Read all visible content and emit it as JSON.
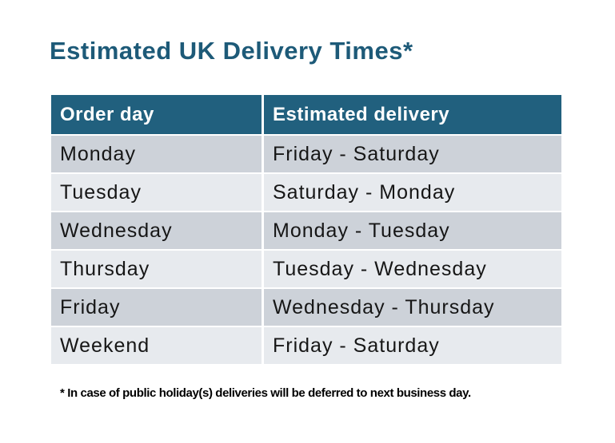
{
  "title": "Estimated UK Delivery Times*",
  "table": {
    "columns": [
      "Order day",
      "Estimated delivery"
    ],
    "rows": [
      {
        "order_day": "Monday",
        "estimated_delivery": "Friday - Saturday"
      },
      {
        "order_day": "Tuesday",
        "estimated_delivery": "Saturday - Monday"
      },
      {
        "order_day": "Wednesday",
        "estimated_delivery": "Monday - Tuesday"
      },
      {
        "order_day": "Thursday",
        "estimated_delivery": "Tuesday - Wednesday"
      },
      {
        "order_day": "Friday",
        "estimated_delivery": "Wednesday - Thursday"
      },
      {
        "order_day": "Weekend",
        "estimated_delivery": "Friday - Saturday"
      }
    ]
  },
  "footnote": "* In case of public holiday(s) deliveries will be deferred to next business day.",
  "colors": {
    "background": "#FFFFFF",
    "title": "#1D5A78",
    "header_bg": "#21607E",
    "header_text": "#FFFFFF",
    "row_dark": "#CDD2D9",
    "row_light": "#E7EAEE",
    "body_text": "#161616",
    "footnote_text": "#000000"
  }
}
